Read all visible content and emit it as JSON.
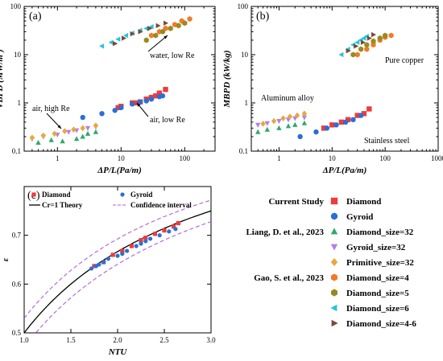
{
  "colors": {
    "Diamond": "#ee3b3b",
    "Gyroid": "#2b6fd6",
    "Diamond_size=32": "#2eaa6a",
    "Gyroid_size=32": "#b57ee8",
    "Primitive_size=32": "#e8a83a",
    "Diamond_size=4": "#f07a2a",
    "Diamond_size=5": "#9a8a1e",
    "Diamond_size=6": "#27c4dc",
    "Diamond_size=4-6": "#7a4a38"
  },
  "legend": {
    "groups": [
      {
        "heading": "Current Study",
        "items": [
          {
            "label": "Diamond",
            "marker": "square"
          },
          {
            "label": "Gyroid",
            "marker": "circle"
          }
        ]
      },
      {
        "heading": "Liang, D. et al., 2023",
        "items": [
          {
            "label": "Diamond_size=32",
            "marker": "triangle-up"
          },
          {
            "label": "Gyroid_size=32",
            "marker": "triangle-down"
          },
          {
            "label": "Primitive_size=32",
            "marker": "diamond"
          }
        ]
      },
      {
        "heading": "Gao, S. et al., 2023",
        "items": [
          {
            "label": "Diamond_size=4",
            "marker": "hexagon"
          },
          {
            "label": "Diamond_size=5",
            "marker": "hexagon"
          },
          {
            "label": "Diamond_size=6",
            "marker": "triangle-left"
          },
          {
            "label": "Diamond_size=4-6",
            "marker": "triangle-right"
          }
        ]
      }
    ]
  },
  "chart_data": [
    {
      "panel_label": "(a)",
      "type": "scatter",
      "xscale": "log",
      "yscale": "log",
      "xlim": [
        0.3,
        300
      ],
      "ylim": [
        0.1,
        100
      ],
      "xticks": [
        "1",
        "10",
        "100"
      ],
      "yticks": [
        "0.1",
        "1",
        "10",
        "100"
      ],
      "xlabel": "ΔP/L(Pa/m)",
      "ylabel": "VBPD (MW/m³)",
      "annotations": [
        "air, high Re",
        "air, low Re",
        "water, low Re"
      ],
      "series": [
        {
          "name": "Diamond",
          "marker": "square",
          "points": [
            [
              9,
              0.8
            ],
            [
              10,
              0.85
            ],
            [
              15,
              1.0
            ],
            [
              17,
              1.0
            ],
            [
              20,
              1.05
            ],
            [
              25,
              1.2
            ],
            [
              30,
              1.3
            ],
            [
              35,
              1.4
            ],
            [
              40,
              1.6
            ],
            [
              50,
              1.9
            ]
          ]
        },
        {
          "name": "Gyroid",
          "marker": "circle",
          "points": [
            [
              2.5,
              0.5
            ],
            [
              5,
              0.6
            ],
            [
              8,
              0.7
            ],
            [
              10,
              0.8
            ],
            [
              15,
              0.95
            ],
            [
              20,
              1.05
            ],
            [
              25,
              1.1
            ],
            [
              30,
              1.2
            ],
            [
              40,
              1.35
            ],
            [
              45,
              1.4
            ]
          ]
        },
        {
          "name": "Diamond_size=32",
          "marker": "triangle-up",
          "points": [
            [
              0.5,
              0.15
            ],
            [
              0.8,
              0.17
            ],
            [
              1.2,
              0.16
            ],
            [
              2,
              0.18
            ],
            [
              2.5,
              0.2
            ],
            [
              3,
              0.23
            ],
            [
              4,
              0.25
            ]
          ]
        },
        {
          "name": "Gyroid_size=32",
          "marker": "triangle-down",
          "points": [
            [
              0.4,
              0.18
            ],
            [
              0.6,
              0.2
            ],
            [
              1,
              0.22
            ],
            [
              1.5,
              0.25
            ],
            [
              2,
              0.27
            ],
            [
              3,
              0.3
            ],
            [
              4,
              0.32
            ]
          ]
        },
        {
          "name": "Primitive_size=32",
          "marker": "diamond",
          "points": [
            [
              0.4,
              0.19
            ],
            [
              0.6,
              0.21
            ],
            [
              0.9,
              0.23
            ],
            [
              1.3,
              0.26
            ],
            [
              1.8,
              0.28
            ],
            [
              2.5,
              0.3
            ],
            [
              4,
              0.34
            ]
          ]
        },
        {
          "name": "Diamond_size=4",
          "marker": "hexagon",
          "points": [
            [
              30,
              25
            ],
            [
              40,
              30
            ],
            [
              50,
              35
            ],
            [
              70,
              42
            ],
            [
              90,
              50
            ],
            [
              120,
              55
            ]
          ]
        },
        {
          "name": "Diamond_size=5",
          "marker": "hexagon",
          "points": [
            [
              25,
              20
            ],
            [
              35,
              25
            ],
            [
              45,
              30
            ],
            [
              60,
              35
            ],
            [
              80,
              40
            ],
            [
              100,
              45
            ]
          ]
        },
        {
          "name": "Diamond_size=6",
          "marker": "triangle-left",
          "points": [
            [
              5,
              15
            ],
            [
              7,
              18
            ],
            [
              9,
              21
            ],
            [
              12,
              25
            ],
            [
              15,
              28
            ],
            [
              20,
              32
            ],
            [
              25,
              35
            ],
            [
              30,
              38
            ]
          ]
        },
        {
          "name": "Diamond_size=4-6",
          "marker": "triangle-right",
          "points": [
            [
              8,
              17
            ],
            [
              11,
              22
            ],
            [
              15,
              27
            ],
            [
              20,
              30
            ],
            [
              28,
              35
            ],
            [
              38,
              40
            ],
            [
              50,
              45
            ]
          ]
        }
      ]
    },
    {
      "panel_label": "(b)",
      "type": "scatter",
      "xscale": "log",
      "yscale": "log",
      "xlim": [
        0.3,
        1000
      ],
      "ylim": [
        0.1,
        100
      ],
      "xticks": [
        "1",
        "10",
        "100",
        "1000"
      ],
      "yticks": [
        "0.1",
        "1",
        "10",
        "100"
      ],
      "xlabel": "ΔP/L(Pa/m)",
      "ylabel": "MBPD (kW/kg)",
      "annotations": [
        "Aluminum alloy",
        "Stainless steel",
        "Pure copper"
      ],
      "series": [
        {
          "name": "Diamond",
          "marker": "square",
          "points": [
            [
              7,
              0.3
            ],
            [
              10,
              0.35
            ],
            [
              15,
              0.4
            ],
            [
              20,
              0.45
            ],
            [
              30,
              0.55
            ],
            [
              40,
              0.6
            ],
            [
              50,
              0.75
            ]
          ]
        },
        {
          "name": "Gyroid",
          "marker": "circle",
          "points": [
            [
              2.5,
              0.2
            ],
            [
              5,
              0.25
            ],
            [
              8,
              0.3
            ],
            [
              12,
              0.35
            ],
            [
              18,
              0.4
            ],
            [
              25,
              0.45
            ],
            [
              35,
              0.55
            ]
          ]
        },
        {
          "name": "Diamond_size=32",
          "marker": "triangle-up",
          "points": [
            [
              0.4,
              0.25
            ],
            [
              0.6,
              0.28
            ],
            [
              1,
              0.3
            ],
            [
              1.5,
              0.33
            ],
            [
              2,
              0.35
            ],
            [
              3,
              0.38
            ]
          ]
        },
        {
          "name": "Gyroid_size=32",
          "marker": "triangle-down",
          "points": [
            [
              0.4,
              0.35
            ],
            [
              0.6,
              0.38
            ],
            [
              1,
              0.42
            ],
            [
              1.5,
              0.45
            ],
            [
              2,
              0.48
            ],
            [
              3,
              0.5
            ]
          ]
        },
        {
          "name": "Primitive_size=32",
          "marker": "diamond",
          "points": [
            [
              0.5,
              0.37
            ],
            [
              0.8,
              0.42
            ],
            [
              1.2,
              0.48
            ],
            [
              1.6,
              0.52
            ],
            [
              2.2,
              0.55
            ],
            [
              3,
              0.6
            ]
          ]
        },
        {
          "name": "Diamond_size=4",
          "marker": "hexagon",
          "points": [
            [
              30,
              10
            ],
            [
              45,
              13
            ],
            [
              60,
              16
            ],
            [
              80,
              20
            ],
            [
              100,
              23
            ],
            [
              130,
              25
            ]
          ]
        },
        {
          "name": "Diamond_size=5",
          "marker": "hexagon",
          "points": [
            [
              25,
              10
            ],
            [
              35,
              13
            ],
            [
              45,
              16
            ],
            [
              60,
              19
            ],
            [
              80,
              22
            ],
            [
              100,
              25
            ]
          ]
        },
        {
          "name": "Diamond_size=6",
          "marker": "triangle-left",
          "points": [
            [
              15,
              10
            ],
            [
              20,
              13
            ],
            [
              25,
              16
            ],
            [
              30,
              18
            ],
            [
              35,
              20
            ],
            [
              40,
              22
            ],
            [
              45,
              24
            ]
          ]
        },
        {
          "name": "Diamond_size=4-6",
          "marker": "triangle-right",
          "points": [
            [
              20,
              12
            ],
            [
              28,
              15
            ],
            [
              38,
              18
            ],
            [
              50,
              22
            ],
            [
              60,
              26
            ]
          ]
        }
      ]
    },
    {
      "panel_label": "(c)",
      "type": "scatter",
      "xlim": [
        1.0,
        3.0
      ],
      "ylim": [
        0.5,
        0.8
      ],
      "xticks": [
        "1.0",
        "1.5",
        "2.0",
        "2.5",
        "3.0"
      ],
      "yticks": [
        "0.5",
        "0.6",
        "0.7"
      ],
      "xlabel": "NTU",
      "ylabel": "ε",
      "legend_entries": [
        "Diamond",
        "Gyroid",
        "Cr=1 Theory",
        "Confidence interval"
      ],
      "series": [
        {
          "name": "Diamond",
          "marker": "square",
          "points": [
            [
              1.75,
              0.637
            ],
            [
              1.85,
              0.645
            ],
            [
              1.95,
              0.66
            ],
            [
              2.05,
              0.668
            ],
            [
              2.15,
              0.678
            ],
            [
              2.25,
              0.69
            ],
            [
              2.3,
              0.695
            ],
            [
              2.4,
              0.703
            ],
            [
              2.5,
              0.71
            ],
            [
              2.6,
              0.718
            ],
            [
              2.65,
              0.725
            ]
          ]
        },
        {
          "name": "Gyroid",
          "marker": "circle",
          "points": [
            [
              1.72,
              0.632
            ],
            [
              1.77,
              0.637
            ],
            [
              1.8,
              0.64
            ],
            [
              1.85,
              0.645
            ],
            [
              1.9,
              0.652
            ],
            [
              2.0,
              0.658
            ],
            [
              2.05,
              0.662
            ],
            [
              2.1,
              0.668
            ],
            [
              2.2,
              0.678
            ],
            [
              2.25,
              0.683
            ],
            [
              2.3,
              0.688
            ],
            [
              2.35,
              0.693
            ],
            [
              2.45,
              0.7
            ],
            [
              2.55,
              0.708
            ],
            [
              2.62,
              0.713
            ]
          ]
        }
      ],
      "curves": [
        {
          "name": "Cr=1 Theory",
          "style": "solid"
        },
        {
          "name": "Confidence interval",
          "style": "dashed"
        }
      ]
    }
  ]
}
